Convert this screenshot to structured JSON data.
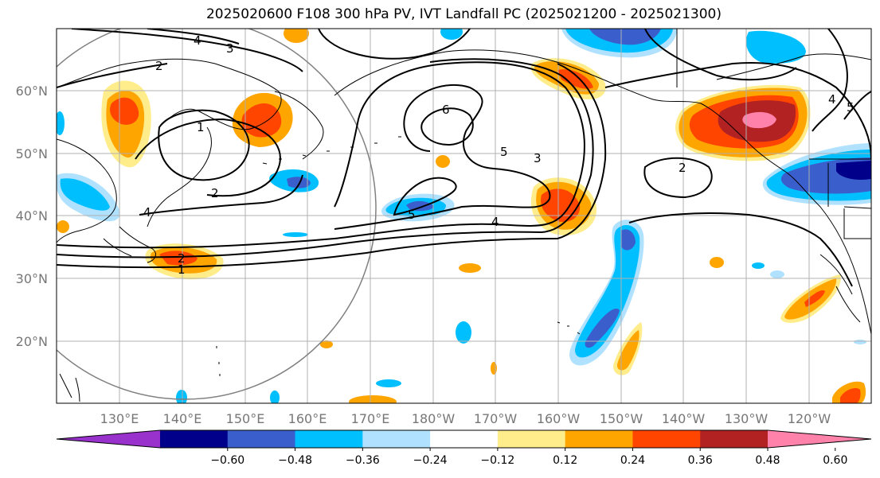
{
  "title": "2025020600 F108 300 hPa PV, IVT Landfall PC (2025021200 - 2025021300)",
  "lat_labels": [
    "60°N",
    "50°N",
    "40°N",
    "30°N",
    "20°N"
  ],
  "lon_labels": [
    "130°E",
    "140°E",
    "150°E",
    "160°E",
    "170°E",
    "180°W",
    "170°W",
    "160°W",
    "150°W",
    "140°W",
    "130°W",
    "120°W"
  ],
  "colorbar": {
    "ticks": [
      "−0.60",
      "−0.48",
      "−0.36",
      "−0.24",
      "−0.12",
      "0.12",
      "0.24",
      "0.36",
      "0.48",
      "0.60"
    ],
    "colors": [
      "#9932cc",
      "#00008b",
      "#3a5fcd",
      "#00bfff",
      "#b0e2ff",
      "#ffffff",
      "#ffec8b",
      "#ffa500",
      "#ff4500",
      "#b22222",
      "#ff82ab"
    ]
  },
  "contour_labels": [
    "4",
    "3",
    "2",
    "1",
    "6",
    "5",
    "3",
    "2",
    "5",
    "4",
    "2",
    "1",
    "4",
    "2",
    "5",
    "4"
  ],
  "colors": {
    "grid": "#b0b0b0",
    "coast": "#000000",
    "circle": "#808080"
  }
}
